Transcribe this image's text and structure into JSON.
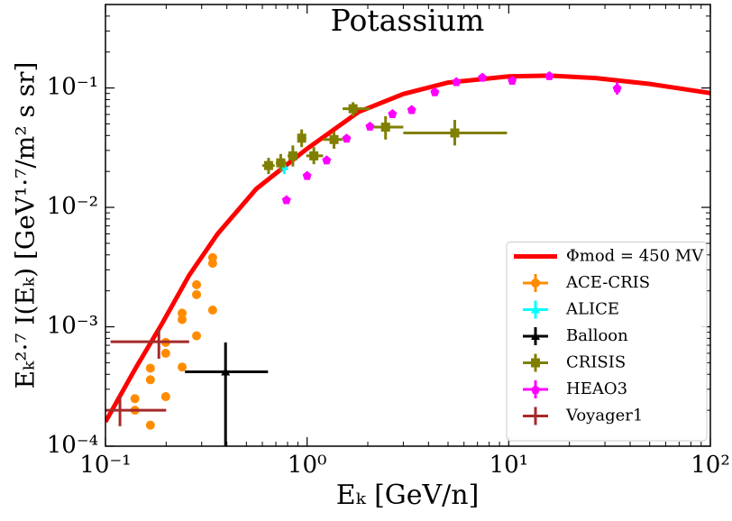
{
  "chart_data": {
    "type": "scatter",
    "title": "Potassium",
    "xlabel": "Eₖ [GeV/n]",
    "ylabel": "Eₖ²·⁷ I(Eₖ) [GeV¹·⁷/m² s sr]",
    "xscale": "log",
    "yscale": "log",
    "xlim": [
      0.1,
      100
    ],
    "ylim": [
      0.0001,
      0.5
    ],
    "xticks": [
      {
        "value": 0.1,
        "label": "10⁻¹"
      },
      {
        "value": 1,
        "label": "10⁰"
      },
      {
        "value": 10,
        "label": "10¹"
      },
      {
        "value": 100,
        "label": "10²"
      }
    ],
    "yticks": [
      {
        "value": 0.0001,
        "label": "10⁻⁴"
      },
      {
        "value": 0.001,
        "label": "10⁻³"
      },
      {
        "value": 0.01,
        "label": "10⁻²"
      },
      {
        "value": 0.1,
        "label": "10⁻¹"
      }
    ],
    "legend": "lower right",
    "lines": [
      {
        "name": "Φmod = 450 MV",
        "color": "#ff0000",
        "x": [
          0.1,
          0.14,
          0.19,
          0.26,
          0.36,
          0.56,
          1,
          1.8,
          3,
          5,
          10,
          16,
          27,
          50,
          100
        ],
        "values": [
          0.00016,
          0.00044,
          0.00105,
          0.0027,
          0.006,
          0.0143,
          0.031,
          0.063,
          0.089,
          0.111,
          0.125,
          0.127,
          0.121,
          0.108,
          0.0906
        ]
      }
    ],
    "series": [
      {
        "name": "ACE-CRIS",
        "color": "#ff8c00",
        "marker": "circle",
        "x": [
          0.14,
          0.14,
          0.167,
          0.167,
          0.167,
          0.199,
          0.199,
          0.199,
          0.24,
          0.24,
          0.24,
          0.283,
          0.283,
          0.283,
          0.34,
          0.34,
          0.34
        ],
        "values": [
          0.00025,
          0.0002,
          0.00015,
          0.00036,
          0.00045,
          0.00026,
          0.0006,
          0.00074,
          0.00046,
          0.00115,
          0.0013,
          0.00084,
          0.00186,
          0.00225,
          0.00138,
          0.0034,
          0.0038
        ]
      },
      {
        "name": "ALICE",
        "color": "#00ffff",
        "marker": "triangle",
        "x": [
          0.77
        ],
        "values": [
          0.022
        ],
        "ylow": [
          0.019
        ],
        "yhigh": [
          0.025
        ]
      },
      {
        "name": "Balloon",
        "color": "#000000",
        "marker": "triangle",
        "x": [
          0.394
        ],
        "values": [
          0.00042
        ],
        "xlow": [
          0.248
        ],
        "xhigh": [
          0.64
        ],
        "ylow": [
          0.0001
        ],
        "yhigh": [
          0.00074
        ]
      },
      {
        "name": "CRISIS",
        "color": "#808000",
        "marker": "square",
        "x": [
          0.644,
          0.74,
          0.85,
          0.94,
          1.08,
          1.36,
          1.69,
          2.45,
          5.4
        ],
        "values": [
          0.0224,
          0.0236,
          0.027,
          0.038,
          0.027,
          0.037,
          0.067,
          0.047,
          0.042
        ],
        "xlow": [
          0.6,
          0.7,
          0.8,
          0.9,
          0.99,
          1.2,
          1.5,
          2.0,
          3.0
        ],
        "xhigh": [
          0.69,
          0.79,
          0.9,
          0.99,
          1.2,
          1.5,
          2.05,
          3.0,
          9.8
        ],
        "ylow": [
          0.019,
          0.02,
          0.022,
          0.032,
          0.023,
          0.031,
          0.058,
          0.037,
          0.033
        ],
        "yhigh": [
          0.026,
          0.028,
          0.033,
          0.045,
          0.032,
          0.043,
          0.076,
          0.058,
          0.054
        ]
      },
      {
        "name": "HEAO3",
        "color": "#ff00ff",
        "marker": "diamond",
        "x": [
          0.79,
          1.0,
          1.25,
          1.57,
          2.05,
          2.65,
          3.3,
          4.3,
          5.5,
          7.4,
          10.4,
          15.9,
          34.5
        ],
        "values": [
          0.0116,
          0.0185,
          0.025,
          0.038,
          0.048,
          0.061,
          0.066,
          0.093,
          0.113,
          0.123,
          0.116,
          0.127,
          0.1
        ],
        "ylow": [
          null,
          null,
          null,
          null,
          null,
          null,
          null,
          null,
          null,
          null,
          null,
          null,
          0.088
        ],
        "yhigh": [
          null,
          null,
          null,
          null,
          null,
          null,
          null,
          null,
          null,
          null,
          null,
          null,
          0.113
        ]
      },
      {
        "name": "Voyager1",
        "color": "#a52a2a",
        "marker": "none",
        "x": [
          0.118,
          0.184
        ],
        "values": [
          0.0002,
          0.00075
        ],
        "xlow": [
          0.1,
          0.106
        ],
        "xhigh": [
          0.2,
          0.26
        ],
        "ylow": [
          0.000147,
          0.00054
        ],
        "yhigh": [
          0.00026,
          0.00096
        ]
      }
    ]
  }
}
